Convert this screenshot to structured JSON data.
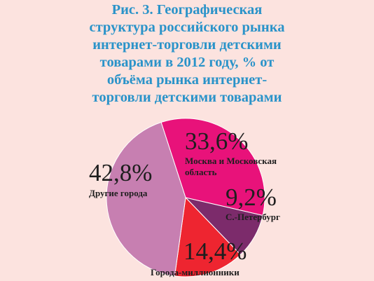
{
  "title_lines": [
    "Рис. 3. Географическая",
    "структура российского рынка",
    "интернет-торговли детскими",
    "товарами в 2012 году, % от",
    "объёма рынка интернет-",
    "торговли детскими товарами"
  ],
  "chart_data": {
    "type": "pie",
    "title": "Рис. 3. Географическая структура российского рынка интернет-торговли детскими товарами в 2012 году, % от объёма рынка интернет-торговли детскими товарами",
    "slices": [
      {
        "label": "Москва и Московская область",
        "value": 33.6,
        "display": "33,6%",
        "color": "#e8127a"
      },
      {
        "label": "С.-Петербург",
        "value": 9.2,
        "display": "9,2%",
        "color": "#7c2b6b"
      },
      {
        "label": "Города-миллионники",
        "value": 14.4,
        "display": "14,4%",
        "color": "#ee2530"
      },
      {
        "label": "Другие города",
        "value": 42.8,
        "display": "42,8%",
        "color": "#c77fb1"
      }
    ],
    "start_angle_deg": -108
  }
}
